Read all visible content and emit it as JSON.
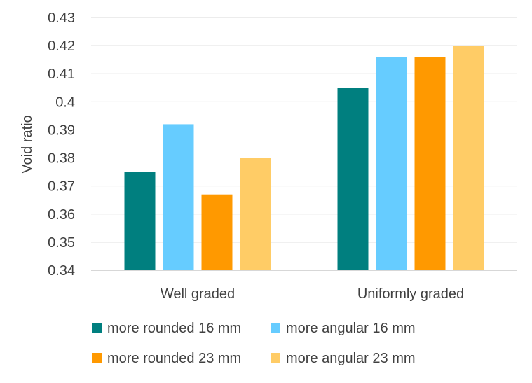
{
  "chart_data": {
    "type": "bar",
    "ylabel": "Void ratio",
    "xlabel": "",
    "ylim": [
      0.34,
      0.43
    ],
    "yticks": [
      "0.34",
      "0.35",
      "0.36",
      "0.37",
      "0.38",
      "0.39",
      "0.4",
      "0.41",
      "0.42",
      "0.43"
    ],
    "grid": true,
    "legend_placement": "bottom",
    "categories": [
      "Well graded",
      "Uniformly graded"
    ],
    "series": [
      {
        "name": "more rounded 16 mm",
        "color": "#007F7F",
        "values": [
          0.375,
          0.405
        ]
      },
      {
        "name": "more angular 16 mm",
        "color": "#66CCFF",
        "values": [
          0.392,
          0.416
        ]
      },
      {
        "name": "more rounded 23 mm",
        "color": "#FF9900",
        "values": [
          0.367,
          0.416
        ]
      },
      {
        "name": "more angular 23 mm",
        "color": "#FFCC66",
        "values": [
          0.38,
          0.42
        ]
      }
    ]
  }
}
